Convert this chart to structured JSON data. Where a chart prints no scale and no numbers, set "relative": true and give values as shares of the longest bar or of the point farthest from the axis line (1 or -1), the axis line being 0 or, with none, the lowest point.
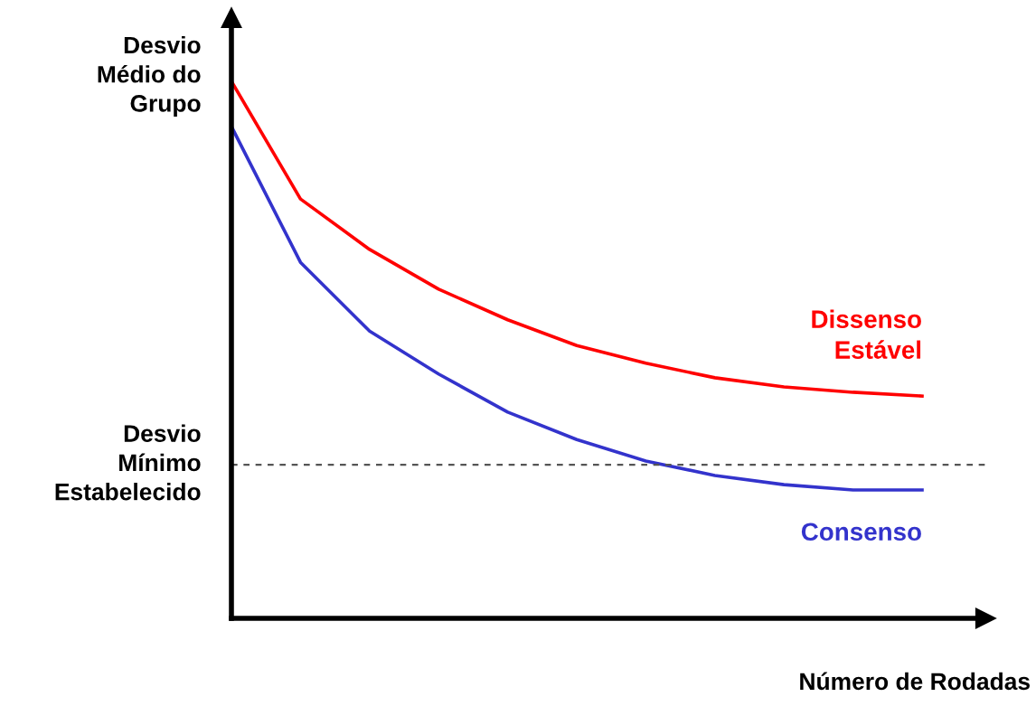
{
  "chart_data": {
    "type": "line",
    "relative": true,
    "xlabel": "Número de Rodadas",
    "ylabel": "Desvio\nMédio do\nGrupo",
    "categories": [
      null,
      null,
      null,
      null,
      null,
      null,
      null,
      null,
      null,
      null,
      null
    ],
    "series": [
      {
        "name": "Dissenso\nEstável",
        "color": "#ff0000",
        "values": [
          1,
          0.781,
          0.687,
          0.613,
          0.556,
          0.508,
          0.475,
          0.448,
          0.431,
          0.421,
          0.414
        ]
      },
      {
        "name": "Consenso",
        "color": "#3333cc",
        "values": [
          0.916,
          0.663,
          0.535,
          0.455,
          0.384,
          0.333,
          0.293,
          0.266,
          0.249,
          0.239,
          0.239
        ]
      }
    ],
    "ref_lines": [
      {
        "axis": "y",
        "value": 0.286,
        "label": "Desvio\nMínimo\nEstabelecido",
        "color": "#555555",
        "line_style": "dashed"
      }
    ],
    "legend": false,
    "marker": "none",
    "line_style": "solid"
  }
}
